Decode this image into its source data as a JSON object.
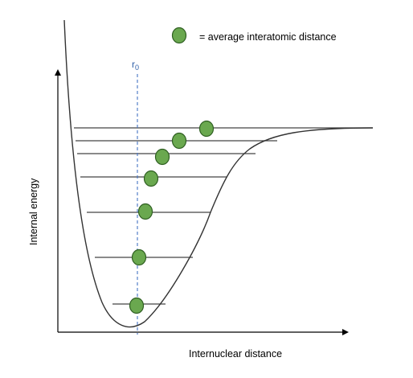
{
  "legend": {
    "marker_color": "#6aa84f",
    "marker_stroke": "#2f5f22",
    "text": "= average interatomic distance"
  },
  "equilibrium": {
    "label_main": "r",
    "label_sub": "0",
    "line_color": "#4472c4"
  },
  "axes": {
    "x_label": "Internuclear distance",
    "y_label": "Internal energy"
  },
  "energy_levels": [
    {
      "level": 1
    },
    {
      "level": 2
    },
    {
      "level": 3
    },
    {
      "level": 4
    },
    {
      "level": 5
    },
    {
      "level": 6
    },
    {
      "level": 7
    }
  ],
  "colors": {
    "curve": "#333333",
    "levels": "#444444",
    "axes": "#000000"
  }
}
